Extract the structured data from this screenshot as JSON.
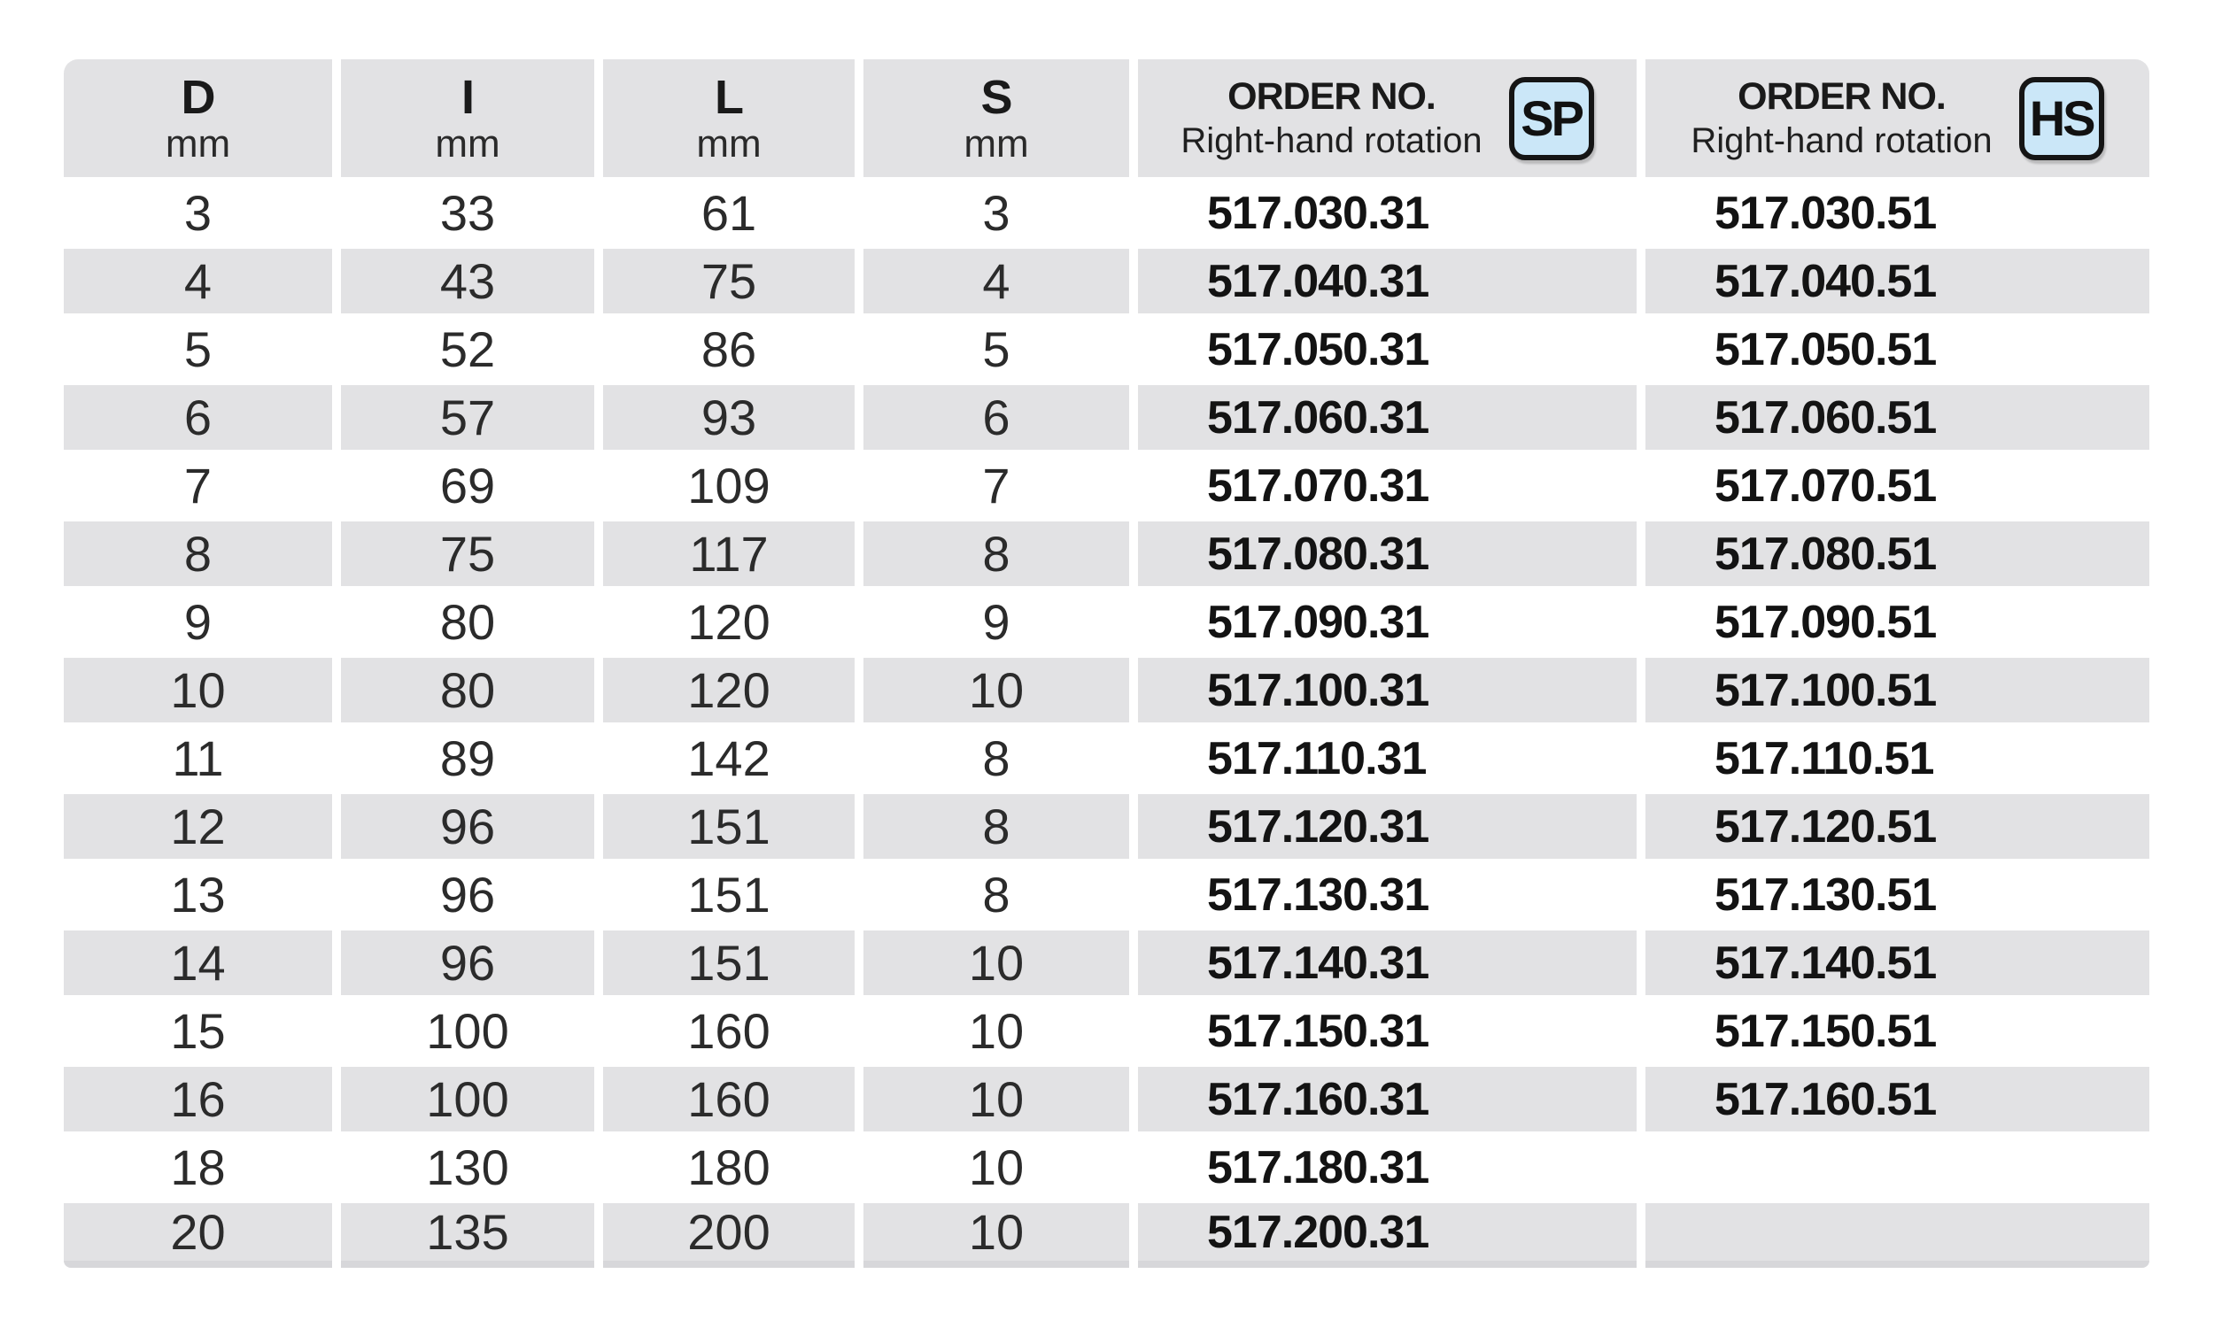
{
  "table": {
    "columns": [
      {
        "label": "D",
        "unit": "mm"
      },
      {
        "label": "I",
        "unit": "mm"
      },
      {
        "label": "L",
        "unit": "mm"
      },
      {
        "label": "S",
        "unit": "mm"
      },
      {
        "label": "ORDER NO.",
        "sublabel": "Right-hand rotation",
        "badge": "SP"
      },
      {
        "label": "ORDER NO.",
        "sublabel": "Right-hand rotation",
        "badge": "HS"
      }
    ],
    "rows": [
      {
        "d": "3",
        "i": "33",
        "l": "61",
        "s": "3",
        "order_sp": "517.030.31",
        "order_hs": "517.030.51"
      },
      {
        "d": "4",
        "i": "43",
        "l": "75",
        "s": "4",
        "order_sp": "517.040.31",
        "order_hs": "517.040.51"
      },
      {
        "d": "5",
        "i": "52",
        "l": "86",
        "s": "5",
        "order_sp": "517.050.31",
        "order_hs": "517.050.51"
      },
      {
        "d": "6",
        "i": "57",
        "l": "93",
        "s": "6",
        "order_sp": "517.060.31",
        "order_hs": "517.060.51"
      },
      {
        "d": "7",
        "i": "69",
        "l": "109",
        "s": "7",
        "order_sp": "517.070.31",
        "order_hs": "517.070.51"
      },
      {
        "d": "8",
        "i": "75",
        "l": "117",
        "s": "8",
        "order_sp": "517.080.31",
        "order_hs": "517.080.51"
      },
      {
        "d": "9",
        "i": "80",
        "l": "120",
        "s": "9",
        "order_sp": "517.090.31",
        "order_hs": "517.090.51"
      },
      {
        "d": "10",
        "i": "80",
        "l": "120",
        "s": "10",
        "order_sp": "517.100.31",
        "order_hs": "517.100.51"
      },
      {
        "d": "11",
        "i": "89",
        "l": "142",
        "s": "8",
        "order_sp": "517.110.31",
        "order_hs": "517.110.51"
      },
      {
        "d": "12",
        "i": "96",
        "l": "151",
        "s": "8",
        "order_sp": "517.120.31",
        "order_hs": "517.120.51"
      },
      {
        "d": "13",
        "i": "96",
        "l": "151",
        "s": "8",
        "order_sp": "517.130.31",
        "order_hs": "517.130.51"
      },
      {
        "d": "14",
        "i": "96",
        "l": "151",
        "s": "10",
        "order_sp": "517.140.31",
        "order_hs": "517.140.51"
      },
      {
        "d": "15",
        "i": "100",
        "l": "160",
        "s": "10",
        "order_sp": "517.150.31",
        "order_hs": "517.150.51"
      },
      {
        "d": "16",
        "i": "100",
        "l": "160",
        "s": "10",
        "order_sp": "517.160.31",
        "order_hs": "517.160.51"
      },
      {
        "d": "18",
        "i": "130",
        "l": "180",
        "s": "10",
        "order_sp": "517.180.31",
        "order_hs": ""
      },
      {
        "d": "20",
        "i": "135",
        "l": "200",
        "s": "10",
        "order_sp": "517.200.31",
        "order_hs": ""
      }
    ]
  },
  "colors": {
    "row_stripe": "#e2e2e4",
    "badge_background": "#cbe7f8",
    "badge_border": "#151515",
    "text": "#1a1a1a",
    "table_bottom_edge": "#d7d7da"
  }
}
